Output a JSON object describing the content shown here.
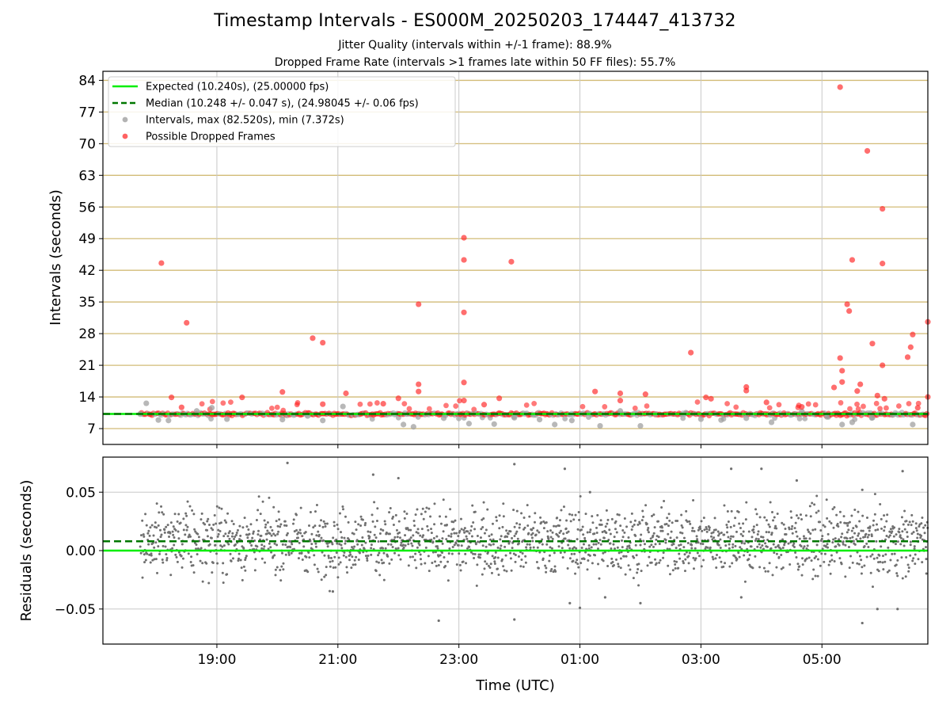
{
  "figure": {
    "title": "Timestamp Intervals - ES000M_20250203_174447_413732",
    "subtitle_1": "Jitter Quality (intervals within +/-1 frame): 88.9%",
    "subtitle_2": "Dropped Frame Rate (intervals >1 frames late within 50 FF files): 55.7%"
  },
  "colors": {
    "expected": "#00ee00",
    "median": "#007700",
    "intervals": "#a0a0a0",
    "dropped": "#ff2020",
    "residuals": "#707070",
    "hgrid_top": "#d2bb77",
    "grid": "#c8c8c8"
  },
  "chart_data": [
    {
      "type": "scatter",
      "ylabel": "Intervals (seconds)",
      "xlabel": "",
      "ylim": [
        3.5,
        86
      ],
      "yticks": [
        7,
        14,
        21,
        28,
        35,
        42,
        49,
        56,
        63,
        70,
        77,
        84
      ],
      "xlim": [
        "17:07",
        "06:45"
      ],
      "x_ticks": [
        "19:00",
        "21:00",
        "23:00",
        "01:00",
        "03:00",
        "05:00"
      ],
      "grid": "on",
      "legend_position": "top-left",
      "legend": [
        "Expected (10.240s), (25.00000 fps)",
        "Median (10.248 +/- 0.047 s), (24.98045 +/- 0.06 fps)",
        "Intervals, max (82.520s), min (7.372s)",
        "Possible Dropped Frames"
      ],
      "expected_value": 10.24,
      "median_value": 10.248,
      "series": [
        {
          "name": "Intervals, max (82.520s), min (7.372s)",
          "points": [
            [
              "17:44",
              10.2
            ],
            [
              "17:50",
              12.6
            ],
            [
              "18:02",
              8.9
            ],
            [
              "18:12",
              8.8
            ],
            [
              "18:40",
              10.9
            ],
            [
              "18:55",
              11.6
            ],
            [
              "19:10",
              9.1
            ],
            [
              "20:05",
              9.0
            ],
            [
              "20:30",
              9.8
            ],
            [
              "20:45",
              8.8
            ],
            [
              "21:05",
              11.9
            ],
            [
              "22:05",
              7.9
            ],
            [
              "22:15",
              7.4
            ],
            [
              "22:45",
              9.3
            ],
            [
              "23:10",
              8.1
            ],
            [
              "23:35",
              8.0
            ],
            [
              "23:55",
              9.4
            ],
            [
              "00:20",
              9.0
            ],
            [
              "00:35",
              7.9
            ],
            [
              "00:52",
              8.8
            ],
            [
              "01:20",
              7.6
            ],
            [
              "01:40",
              10.9
            ],
            [
              "02:00",
              7.6
            ],
            [
              "02:15",
              10.2
            ],
            [
              "02:45",
              10.5
            ],
            [
              "03:00",
              9.1
            ],
            [
              "03:20",
              8.9
            ],
            [
              "03:45",
              9.3
            ],
            [
              "04:10",
              8.4
            ],
            [
              "04:40",
              10.8
            ],
            [
              "05:05",
              9.6
            ],
            [
              "05:20",
              7.9
            ],
            [
              "05:30",
              8.4
            ],
            [
              "05:50",
              9.4
            ],
            [
              "06:10",
              10.0
            ],
            [
              "06:30",
              7.9
            ]
          ]
        },
        {
          "name": "Possible Dropped Frames",
          "points": [
            [
              "18:05",
              43.6
            ],
            [
              "18:30",
              30.4
            ],
            [
              "18:15",
              13.9
            ],
            [
              "18:25",
              11.7
            ],
            [
              "19:25",
              13.9
            ],
            [
              "20:05",
              15.1
            ],
            [
              "20:35",
              27.0
            ],
            [
              "20:45",
              26.0
            ],
            [
              "20:45",
              12.4
            ],
            [
              "21:08",
              14.8
            ],
            [
              "21:45",
              12.5
            ],
            [
              "22:00",
              13.7
            ],
            [
              "22:20",
              34.5
            ],
            [
              "22:20",
              16.8
            ],
            [
              "22:20",
              15.2
            ],
            [
              "23:05",
              49.2
            ],
            [
              "23:05",
              44.3
            ],
            [
              "23:05",
              32.7
            ],
            [
              "23:05",
              17.2
            ],
            [
              "23:05",
              13.2
            ],
            [
              "23:25",
              12.3
            ],
            [
              "23:40",
              13.7
            ],
            [
              "23:52",
              43.9
            ],
            [
              "01:15",
              15.2
            ],
            [
              "01:40",
              14.8
            ],
            [
              "01:40",
              13.2
            ],
            [
              "02:05",
              14.6
            ],
            [
              "02:50",
              23.8
            ],
            [
              "03:05",
              13.9
            ],
            [
              "03:10",
              13.6
            ],
            [
              "03:45",
              16.2
            ],
            [
              "03:45",
              15.4
            ],
            [
              "04:05",
              12.8
            ],
            [
              "04:40",
              11.8
            ],
            [
              "05:12",
              16.1
            ],
            [
              "05:18",
              82.5
            ],
            [
              "05:18",
              22.6
            ],
            [
              "05:20",
              17.3
            ],
            [
              "05:20",
              19.8
            ],
            [
              "05:25",
              34.5
            ],
            [
              "05:27",
              33.0
            ],
            [
              "05:30",
              44.3
            ],
            [
              "05:35",
              15.3
            ],
            [
              "05:38",
              16.8
            ],
            [
              "05:45",
              68.4
            ],
            [
              "05:50",
              25.8
            ],
            [
              "05:55",
              14.3
            ],
            [
              "06:00",
              55.6
            ],
            [
              "06:00",
              43.5
            ],
            [
              "06:00",
              21.0
            ],
            [
              "06:02",
              13.6
            ],
            [
              "06:25",
              22.8
            ],
            [
              "06:28",
              25.0
            ],
            [
              "06:30",
              27.8
            ],
            [
              "06:35",
              11.6
            ],
            [
              "06:45",
              30.6
            ],
            [
              "06:45",
              14.0
            ]
          ]
        }
      ]
    },
    {
      "type": "scatter",
      "ylabel": "Residuals (seconds)",
      "xlabel": "Time (UTC)",
      "ylim": [
        -0.08,
        0.08
      ],
      "yticks": [
        "0.05",
        "0.00",
        "−0.05"
      ],
      "x_ticks": [
        "19:00",
        "21:00",
        "23:00",
        "01:00",
        "03:00",
        "05:00"
      ],
      "grid": "on",
      "expected_value": 0.0,
      "median_value": 0.008,
      "series": [
        {
          "name": "Residuals",
          "points": [
            [
              "20:10",
              0.075
            ],
            [
              "21:35",
              0.065
            ],
            [
              "22:00",
              0.062
            ],
            [
              "23:55",
              0.074
            ],
            [
              "00:45",
              0.07
            ],
            [
              "01:10",
              0.05
            ],
            [
              "03:30",
              0.07
            ],
            [
              "04:00",
              0.07
            ],
            [
              "04:35",
              0.06
            ],
            [
              "05:40",
              0.052
            ],
            [
              "06:20",
              0.068
            ],
            [
              "22:40",
              -0.06
            ],
            [
              "23:55",
              -0.059
            ],
            [
              "00:50",
              -0.045
            ],
            [
              "01:00",
              -0.049
            ],
            [
              "02:00",
              -0.045
            ],
            [
              "05:40",
              -0.062
            ],
            [
              "05:55",
              -0.05
            ],
            [
              "06:15",
              -0.05
            ],
            [
              "20:55",
              -0.035
            ],
            [
              "01:25",
              -0.04
            ],
            [
              "03:40",
              -0.04
            ]
          ]
        }
      ]
    }
  ]
}
